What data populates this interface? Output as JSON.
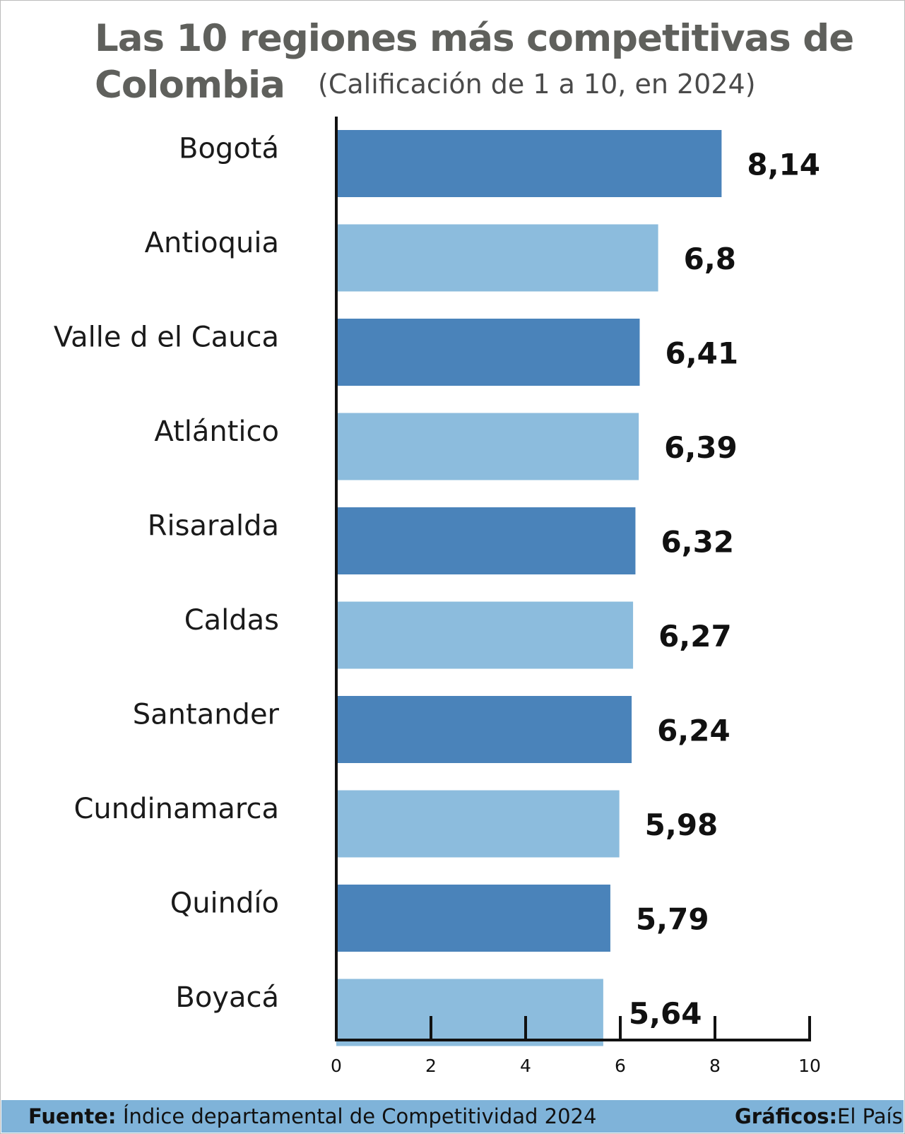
{
  "title_line1": "Las 10 regiones más competitivas de",
  "title_line2": "Colombia",
  "subtitle": "(Calificación de 1 a 10, en 2024)",
  "colors": {
    "dark_bar": "#4a83ba",
    "light_bar": "#8cbcdd",
    "axis": "#111111",
    "footer_bg": "#7fb3d9"
  },
  "chart_data": {
    "type": "bar",
    "orientation": "horizontal",
    "categories": [
      "Bogotá",
      "Antioquia",
      "Valle d el Cauca",
      "Atlántico",
      "Risaralda",
      "Caldas",
      "Santander",
      "Cundinamarca",
      "Quindío",
      "Boyacá"
    ],
    "values": [
      8.14,
      6.8,
      6.41,
      6.39,
      6.32,
      6.27,
      6.24,
      5.98,
      5.79,
      5.64
    ],
    "value_labels": [
      "8,14",
      "6,8",
      "6,41",
      "6,39",
      "6,32",
      "6,27",
      "6,24",
      "5,98",
      "5,79",
      "5,64"
    ],
    "xlim": [
      0,
      10
    ],
    "xticks": [
      "0",
      "2",
      "4",
      "6",
      "8",
      "10"
    ],
    "grid": false,
    "bar_color_pattern": [
      "dark",
      "light"
    ]
  },
  "footer": {
    "source_label": "Fuente:",
    "source_text": "Índice departamental de Competitividad 2024",
    "credit_label": "Gráficos:",
    "credit_text": "El País"
  }
}
